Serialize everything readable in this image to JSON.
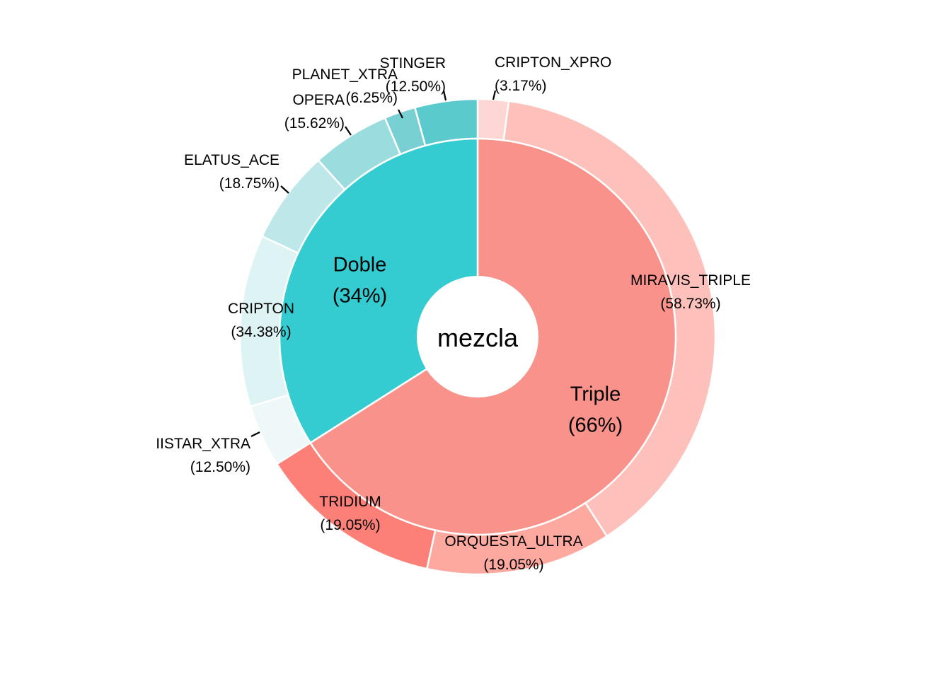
{
  "chart_data": {
    "type": "pie",
    "subtype": "nested-donut",
    "center_label": "mezcla",
    "inner": [
      {
        "name": "Triple",
        "value": 66,
        "label": "Triple",
        "pct_label": "(66%)",
        "color": "#F8928A"
      },
      {
        "name": "Doble",
        "value": 34,
        "label": "Doble",
        "pct_label": "(34%)",
        "color": "#34CCD1"
      }
    ],
    "outer": [
      {
        "parent": "Triple",
        "name": "CRIPTON_XPRO",
        "value": 3.17,
        "pct_label": "(3.17%)",
        "color": "#FED6D3"
      },
      {
        "parent": "Triple",
        "name": "MIRAVIS_TRIPLE",
        "value": 58.73,
        "pct_label": "(58.73%)",
        "color": "#FEC0BA"
      },
      {
        "parent": "Triple",
        "name": "ORQUESTA_ULTRA",
        "value": 19.05,
        "pct_label": "(19.05%)",
        "color": "#FDA9A0"
      },
      {
        "parent": "Triple",
        "name": "TRIDIUM",
        "value": 19.05,
        "pct_label": "(19.05%)",
        "color": "#FC8077"
      },
      {
        "parent": "Doble",
        "name": "MISTAR_XTRA",
        "value": 12.5,
        "pct_label": "(12.50%)",
        "color": "#EFF8F9",
        "display_name": "IISTAR_XTRA"
      },
      {
        "parent": "Doble",
        "name": "CRIPTON",
        "value": 34.38,
        "pct_label": "(34.38%)",
        "color": "#DEF3F4"
      },
      {
        "parent": "Doble",
        "name": "ELATUS_ACE",
        "value": 18.75,
        "pct_label": "(18.75%)",
        "color": "#BDE7E8"
      },
      {
        "parent": "Doble",
        "name": "OPERA",
        "value": 15.62,
        "pct_label": "(15.62%)",
        "color": "#9BDDDF"
      },
      {
        "parent": "Doble",
        "name": "PLANET_XTRA",
        "value": 6.25,
        "pct_label": "(6.25%)",
        "color": "#79D0D2"
      },
      {
        "parent": "Doble",
        "name": "STINGER",
        "value": 12.5,
        "pct_label": "(12.50%)",
        "color": "#5BCACD"
      }
    ]
  }
}
